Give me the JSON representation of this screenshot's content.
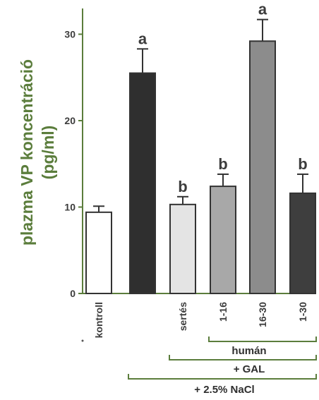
{
  "chart_data": {
    "type": "bar",
    "ylabel_line1": "plazma VP koncentráció",
    "ylabel_line2": "(pg/ml)",
    "ylim": [
      0,
      33
    ],
    "yticks": [
      "0",
      "10",
      "20",
      "30"
    ],
    "categories": [
      "kontroll",
      "",
      "sertés",
      "1-16",
      "16-30",
      "1-30"
    ],
    "values": [
      9.4,
      25.5,
      10.3,
      12.4,
      29.2,
      11.6
    ],
    "errors": [
      0.7,
      2.8,
      0.9,
      1.4,
      2.5,
      2.2
    ],
    "significance": [
      "",
      "a",
      "b",
      "b",
      "a",
      "b"
    ],
    "bar_colors": [
      "#ffffff",
      "#2f2f2f",
      "#e4e4e4",
      "#a8a8a8",
      "#8c8c8c",
      "#3e3e3e"
    ],
    "groups": {
      "human": "humán",
      "gal": "+ GAL",
      "nacl": "+ 2.5% NaCl"
    },
    "grid": false,
    "axis_color": "#5b7d3c"
  }
}
